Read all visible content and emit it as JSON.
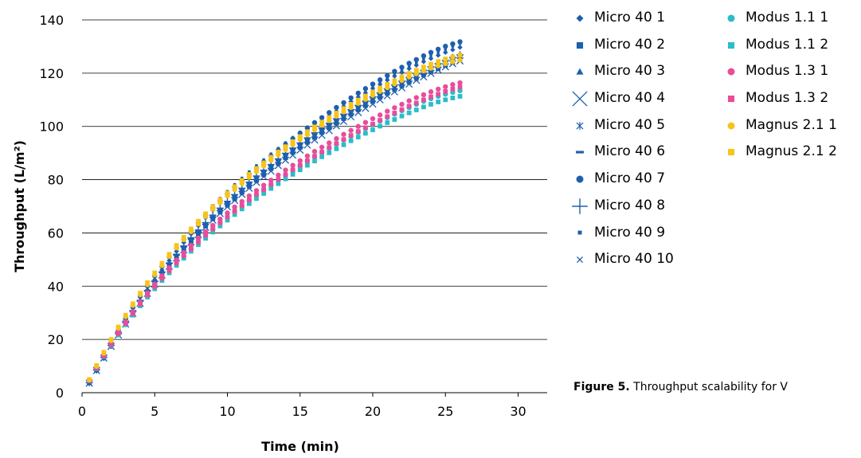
{
  "chart_data": {
    "type": "scatter",
    "xlabel": "Time (min)",
    "ylabel": "Throughput  (L/m²)",
    "xlim": [
      0,
      32
    ],
    "ylim": [
      0,
      140
    ],
    "x_ticks": [
      0,
      5,
      10,
      15,
      20,
      25,
      30
    ],
    "y_ticks": [
      0,
      20,
      40,
      60,
      80,
      100,
      120,
      140
    ],
    "grid": "horizontal",
    "legend_position": "right",
    "x": [
      0.5,
      1.0,
      1.5,
      2.0,
      2.5,
      3.0,
      3.5,
      4.0,
      4.5,
      5.0,
      5.5,
      6.0,
      6.5,
      7.0,
      7.5,
      8.0,
      8.5,
      9.0,
      9.5,
      10.0,
      10.5,
      11.0,
      11.5,
      12.0,
      12.5,
      13.0,
      13.5,
      14.0,
      14.5,
      15.0,
      15.5,
      16.0,
      16.5,
      17.0,
      17.5,
      18.0,
      18.5,
      19.0,
      19.5,
      20.0,
      20.5,
      21.0,
      21.5,
      22.0,
      22.5,
      23.0,
      23.5,
      24.0,
      24.5,
      25.0,
      25.5,
      26.0
    ],
    "series": [
      {
        "name": "Micro 40 1",
        "marker": "diamond",
        "color": "#1f5fae",
        "values": [
          3.5,
          8.3,
          13.1,
          17.6,
          22.1,
          26.4,
          30.6,
          34.6,
          38.6,
          42.4,
          46.1,
          49.6,
          53.1,
          56.4,
          59.6,
          62.7,
          65.7,
          68.5,
          71.2,
          73.9,
          76.4,
          78.8,
          81.2,
          83.5,
          85.7,
          87.9,
          90.0,
          92.1,
          94.2,
          96.2,
          98.2,
          100.1,
          102.0,
          103.9,
          105.7,
          107.5,
          109.3,
          111.0,
          112.6,
          114.3,
          115.8,
          117.4,
          118.9,
          120.3,
          121.7,
          123.0,
          124.3,
          125.5,
          126.7,
          127.8,
          128.8,
          129.7
        ]
      },
      {
        "name": "Micro 40 2",
        "marker": "square",
        "color": "#1f5fae",
        "values": [
          3.7,
          8.4,
          13.1,
          17.5,
          21.8,
          26.0,
          29.9,
          33.8,
          37.5,
          41.0,
          44.5,
          47.7,
          50.9,
          54.0,
          56.9,
          59.8,
          62.6,
          65.3,
          67.9,
          70.4,
          72.8,
          75.2,
          77.5,
          79.7,
          81.9,
          84.1,
          86.1,
          88.2,
          90.2,
          92.1,
          94.0,
          95.8,
          97.7,
          99.4,
          101.2,
          102.9,
          104.5,
          106.2,
          107.8,
          109.3,
          110.9,
          112.4,
          113.8,
          115.2,
          116.6,
          118.0,
          119.3,
          120.5,
          121.7,
          122.9,
          124.0,
          125.0
        ]
      },
      {
        "name": "Micro 40 3",
        "marker": "triangle",
        "color": "#1f5fae",
        "values": [
          3.7,
          8.4,
          13.1,
          17.6,
          22.0,
          26.1,
          30.2,
          34.0,
          37.8,
          41.3,
          44.8,
          48.1,
          51.3,
          54.3,
          57.3,
          60.2,
          62.9,
          65.6,
          68.2,
          70.7,
          73.1,
          75.4,
          77.7,
          79.9,
          82.1,
          84.2,
          86.3,
          88.3,
          90.3,
          92.2,
          94.1,
          95.9,
          97.8,
          99.5,
          101.3,
          103.0,
          104.7,
          106.4,
          108.0,
          109.6,
          111.2,
          112.7,
          114.3,
          115.7,
          117.2,
          118.6,
          120.0,
          121.3,
          122.6,
          123.8,
          124.9,
          126.0
        ]
      },
      {
        "name": "Micro 40 4",
        "marker": "x-large",
        "color": "#1f5fae",
        "values": [
          3.6,
          8.3,
          13.0,
          17.4,
          21.7,
          25.8,
          29.8,
          33.6,
          37.3,
          40.8,
          44.2,
          47.5,
          50.6,
          53.7,
          56.6,
          59.4,
          62.1,
          64.8,
          67.3,
          69.8,
          72.2,
          74.5,
          76.8,
          79.0,
          81.1,
          83.2,
          85.3,
          87.3,
          89.2,
          91.1,
          93.0,
          94.9,
          96.7,
          98.4,
          100.2,
          101.9,
          103.6,
          105.2,
          106.8,
          108.4,
          110.0,
          111.5,
          113.0,
          114.5,
          115.9,
          117.3,
          118.6,
          119.9,
          121.2,
          122.4,
          123.6,
          124.6
        ]
      },
      {
        "name": "Micro 40 5",
        "marker": "asterisk",
        "color": "#1f5fae",
        "values": [
          3.6,
          8.3,
          13.0,
          17.5,
          21.8,
          26.0,
          30.0,
          33.9,
          37.6,
          41.2,
          44.6,
          48.0,
          51.2,
          54.3,
          57.3,
          60.2,
          63.0,
          65.7,
          68.3,
          70.8,
          73.2,
          75.6,
          77.9,
          80.1,
          82.3,
          84.4,
          86.5,
          88.5,
          90.5,
          92.4,
          94.3,
          96.2,
          98.0,
          99.8,
          101.5,
          103.2,
          104.9,
          106.6,
          108.2,
          109.8,
          111.4,
          112.9,
          114.4,
          115.9,
          117.3,
          118.7,
          120.1,
          121.4,
          122.7,
          123.9,
          125.1,
          126.2
        ]
      },
      {
        "name": "Micro 40 6",
        "marker": "dash",
        "color": "#1f5fae",
        "values": [
          3.8,
          8.6,
          13.3,
          17.8,
          22.2,
          26.4,
          30.4,
          34.3,
          38.1,
          41.7,
          45.2,
          48.5,
          51.8,
          54.9,
          57.9,
          60.8,
          63.6,
          66.3,
          69.0,
          71.5,
          74.0,
          76.4,
          78.7,
          81.0,
          83.2,
          85.3,
          87.4,
          89.5,
          91.5,
          93.4,
          95.3,
          97.2,
          99.0,
          100.8,
          102.5,
          104.2,
          105.9,
          107.5,
          109.1,
          110.7,
          112.2,
          113.7,
          115.2,
          116.6,
          118.0,
          119.4,
          120.7,
          122.0,
          123.2,
          124.4,
          125.5,
          126.5
        ]
      },
      {
        "name": "Micro 40 7",
        "marker": "circle",
        "color": "#1f5fae",
        "values": [
          4.0,
          9.0,
          14.0,
          18.8,
          23.4,
          27.8,
          32.1,
          36.2,
          40.1,
          43.9,
          47.5,
          51.0,
          54.4,
          57.6,
          60.7,
          63.7,
          66.6,
          69.4,
          72.1,
          74.7,
          77.2,
          79.7,
          82.1,
          84.4,
          86.7,
          88.9,
          91.1,
          93.2,
          95.3,
          97.4,
          99.4,
          101.4,
          103.3,
          105.2,
          107.1,
          108.9,
          110.7,
          112.5,
          114.2,
          115.9,
          117.5,
          119.1,
          120.7,
          122.2,
          123.7,
          125.1,
          126.5,
          127.8,
          129.0,
          130.1,
          131.0,
          131.8
        ]
      },
      {
        "name": "Micro 40 8",
        "marker": "plus",
        "color": "#1f5fae",
        "values": [
          3.8,
          8.6,
          13.3,
          17.8,
          22.2,
          26.4,
          30.5,
          34.4,
          38.2,
          41.8,
          45.3,
          48.7,
          52.0,
          55.1,
          58.2,
          61.1,
          63.9,
          66.7,
          69.3,
          71.9,
          74.4,
          76.8,
          79.1,
          81.4,
          83.6,
          85.7,
          87.8,
          89.9,
          91.9,
          93.8,
          95.7,
          97.6,
          99.4,
          101.2,
          102.9,
          104.6,
          106.3,
          107.9,
          109.5,
          111.1,
          112.6,
          114.1,
          115.6,
          117.0,
          118.4,
          119.8,
          121.1,
          122.4,
          123.6,
          124.8,
          125.9,
          126.9
        ]
      },
      {
        "name": "Micro 40 9",
        "marker": "small-square",
        "color": "#1f5fae",
        "values": [
          4.1,
          9.2,
          14.2,
          19.0,
          23.7,
          28.2,
          32.5,
          36.6,
          40.6,
          44.4,
          48.1,
          51.6,
          55.0,
          58.3,
          61.5,
          64.5,
          67.5,
          70.3,
          73.0,
          75.6,
          78.2,
          80.6,
          83.0,
          85.3,
          87.5,
          89.7,
          91.8,
          93.9,
          95.9,
          97.9,
          99.8,
          101.7,
          103.5,
          105.3,
          107.1,
          108.8,
          110.5,
          112.1,
          113.7,
          115.3,
          116.8,
          118.3,
          119.8,
          121.2,
          122.6,
          124.0,
          125.3,
          126.6,
          127.8,
          129.0,
          130.1,
          131.1
        ]
      },
      {
        "name": "Micro 40 10",
        "marker": "x-small",
        "color": "#1f5fae",
        "values": [
          3.7,
          8.5,
          13.2,
          17.7,
          22.0,
          26.2,
          30.2,
          34.1,
          37.8,
          41.4,
          44.9,
          48.2,
          51.4,
          54.5,
          57.5,
          60.4,
          63.2,
          65.9,
          68.5,
          71.0,
          73.4,
          75.8,
          78.1,
          80.3,
          82.5,
          84.6,
          86.7,
          88.7,
          90.7,
          92.6,
          94.5,
          96.3,
          98.1,
          99.9,
          101.6,
          103.3,
          105.0,
          106.6,
          108.2,
          109.8,
          111.3,
          112.8,
          114.3,
          115.7,
          117.1,
          118.5,
          119.8,
          121.1,
          122.3,
          123.5,
          124.6,
          125.6
        ]
      },
      {
        "name": "Modus 1.1 1",
        "marker": "circle",
        "color": "#2bbcc9",
        "values": [
          4.6,
          9.3,
          13.8,
          18.1,
          22.2,
          26.0,
          29.7,
          33.2,
          36.6,
          39.8,
          42.9,
          45.8,
          48.7,
          51.4,
          54.0,
          56.6,
          59.0,
          61.4,
          63.7,
          65.9,
          68.1,
          70.2,
          72.2,
          74.2,
          76.2,
          78.1,
          79.9,
          81.7,
          83.5,
          85.2,
          86.9,
          88.6,
          90.2,
          91.8,
          93.3,
          94.9,
          96.3,
          97.8,
          99.2,
          100.6,
          102.0,
          103.3,
          104.6,
          105.9,
          107.1,
          108.3,
          109.4,
          110.4,
          111.3,
          112.1,
          112.8,
          113.4
        ]
      },
      {
        "name": "Modus 1.1 2",
        "marker": "square",
        "color": "#2bbcc9",
        "values": [
          4.4,
          9.0,
          13.5,
          17.7,
          21.7,
          25.5,
          29.1,
          32.6,
          35.9,
          39.0,
          42.1,
          45.0,
          47.8,
          50.5,
          53.1,
          55.6,
          58.0,
          60.3,
          62.6,
          64.8,
          66.9,
          69.0,
          71.0,
          72.9,
          74.8,
          76.7,
          78.5,
          80.3,
          82.0,
          83.7,
          85.4,
          87.0,
          88.6,
          90.1,
          91.6,
          93.1,
          94.6,
          96.0,
          97.4,
          98.7,
          100.1,
          101.4,
          102.6,
          103.9,
          105.1,
          106.2,
          107.3,
          108.3,
          109.2,
          110.0,
          110.7,
          111.3
        ]
      },
      {
        "name": "Modus 1.3 1",
        "marker": "circle",
        "color": "#e84d9a",
        "values": [
          4.7,
          9.5,
          14.1,
          18.5,
          22.7,
          26.6,
          30.4,
          34.0,
          37.5,
          40.8,
          43.9,
          46.9,
          49.8,
          52.6,
          55.3,
          57.9,
          60.4,
          62.8,
          65.2,
          67.5,
          69.7,
          71.8,
          73.9,
          75.9,
          77.9,
          79.8,
          81.7,
          83.6,
          85.4,
          87.1,
          88.9,
          90.6,
          92.2,
          93.8,
          95.4,
          97.0,
          98.5,
          100.0,
          101.5,
          102.9,
          104.3,
          105.7,
          107.0,
          108.3,
          109.6,
          110.8,
          111.9,
          113.0,
          114.0,
          114.9,
          115.7,
          116.4
        ]
      },
      {
        "name": "Modus 1.3 2",
        "marker": "square",
        "color": "#e84d9a",
        "values": [
          4.5,
          9.2,
          13.7,
          18.0,
          22.1,
          26.0,
          29.7,
          33.2,
          36.6,
          39.8,
          42.9,
          45.8,
          48.7,
          51.4,
          54.0,
          56.6,
          59.1,
          61.5,
          63.8,
          66.0,
          68.2,
          70.3,
          72.4,
          74.4,
          76.3,
          78.2,
          80.1,
          81.9,
          83.7,
          85.4,
          87.1,
          88.8,
          90.4,
          92.0,
          93.6,
          95.1,
          96.6,
          98.1,
          99.5,
          100.9,
          102.3,
          103.7,
          105.0,
          106.3,
          107.6,
          108.8,
          110.0,
          111.1,
          112.1,
          113.1,
          114.0,
          114.8
        ]
      },
      {
        "name": "Magnus 2.1 1",
        "marker": "circle",
        "color": "#f7c41a",
        "values": [
          4.8,
          9.9,
          14.8,
          19.6,
          24.2,
          28.6,
          32.8,
          36.8,
          40.6,
          44.3,
          47.8,
          51.2,
          54.4,
          57.5,
          60.5,
          63.4,
          66.2,
          68.9,
          71.4,
          73.9,
          76.3,
          78.6,
          80.9,
          83.1,
          85.2,
          87.3,
          89.3,
          91.3,
          93.2,
          95.1,
          96.9,
          98.7,
          100.5,
          102.2,
          103.9,
          105.5,
          107.1,
          108.7,
          110.2,
          111.7,
          113.2,
          114.6,
          116.0,
          117.3,
          118.6,
          119.8,
          120.9,
          121.9,
          122.8,
          123.6,
          124.3,
          124.9
        ]
      },
      {
        "name": "Magnus 2.1 2",
        "marker": "square",
        "color": "#f7c41a",
        "values": [
          5.0,
          10.2,
          15.2,
          20.0,
          24.7,
          29.1,
          33.4,
          37.4,
          41.3,
          45.0,
          48.6,
          52.0,
          55.3,
          58.4,
          61.5,
          64.4,
          67.2,
          69.9,
          72.5,
          75.0,
          77.4,
          79.7,
          82.0,
          84.2,
          86.3,
          88.4,
          90.4,
          92.4,
          94.3,
          96.2,
          98.0,
          99.8,
          101.6,
          103.3,
          105.0,
          106.7,
          108.3,
          109.9,
          111.4,
          112.9,
          114.4,
          115.8,
          117.2,
          118.6,
          119.9,
          121.1,
          122.3,
          123.4,
          124.4,
          125.3,
          126.1,
          126.8
        ]
      }
    ]
  },
  "legend": {
    "col1": [
      {
        "label": "Micro 40 1",
        "marker": "diamond",
        "color": "#1f5fae"
      },
      {
        "label": "Micro 40 2",
        "marker": "square",
        "color": "#1f5fae"
      },
      {
        "label": "Micro 40 3",
        "marker": "triangle",
        "color": "#1f5fae"
      },
      {
        "label": "Micro 40 4",
        "marker": "x-large",
        "color": "#1f5fae"
      },
      {
        "label": "Micro 40 5",
        "marker": "asterisk",
        "color": "#1f5fae"
      },
      {
        "label": "Micro 40 6",
        "marker": "dash",
        "color": "#1f5fae"
      },
      {
        "label": "Micro 40 7",
        "marker": "circle",
        "color": "#1f5fae"
      },
      {
        "label": "Micro 40 8",
        "marker": "plus",
        "color": "#1f5fae"
      },
      {
        "label": "Micro 40 9",
        "marker": "small-square",
        "color": "#1f5fae"
      },
      {
        "label": "Micro 40 10",
        "marker": "x-small",
        "color": "#1f5fae"
      }
    ],
    "col2": [
      {
        "label": "Modus 1.1 1",
        "marker": "circle",
        "color": "#2bbcc9"
      },
      {
        "label": "Modus 1.1 2",
        "marker": "square",
        "color": "#2bbcc9"
      },
      {
        "label": "Modus 1.3 1",
        "marker": "circle",
        "color": "#e84d9a"
      },
      {
        "label": "Modus 1.3 2",
        "marker": "square",
        "color": "#e84d9a"
      },
      {
        "label": "Magnus 2.1 1",
        "marker": "circle",
        "color": "#f7c41a"
      },
      {
        "label": "Magnus 2.1 2",
        "marker": "square",
        "color": "#f7c41a"
      }
    ]
  },
  "caption": {
    "bold": "Figure 5.",
    "text": " Throughput scalability for V"
  }
}
